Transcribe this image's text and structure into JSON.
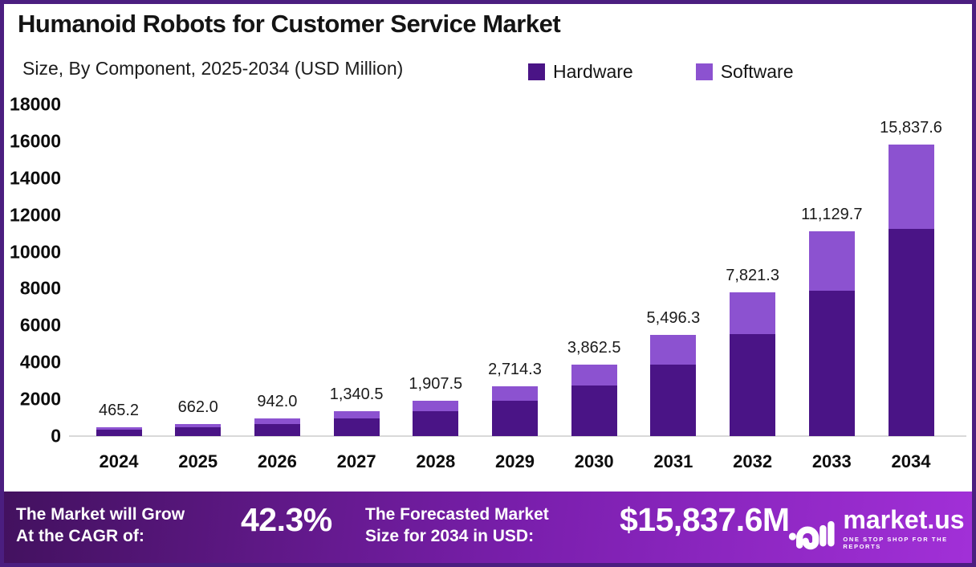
{
  "header": {
    "title": "Humanoid Robots for Customer Service Market",
    "subtitle": "Size, By Component, 2025-2034 (USD Million)"
  },
  "legend": [
    {
      "label": "Hardware",
      "color": "#4a1486"
    },
    {
      "label": "Software",
      "color": "#8c52d0"
    }
  ],
  "chart_data": {
    "type": "bar",
    "stacked": true,
    "title": "Humanoid Robots for Customer Service Market",
    "subtitle": "Size, By Component, 2025-2034 (USD Million)",
    "xlabel": "",
    "ylabel": "USD Million",
    "ylim": [
      0,
      18000
    ],
    "yticks": [
      0,
      2000,
      4000,
      6000,
      8000,
      10000,
      12000,
      14000,
      16000,
      18000
    ],
    "grid": false,
    "legend_position": "top",
    "categories": [
      "2024",
      "2025",
      "2026",
      "2027",
      "2028",
      "2029",
      "2030",
      "2031",
      "2032",
      "2033",
      "2034"
    ],
    "series": [
      {
        "name": "Hardware",
        "color": "#4a1486",
        "values": [
          330.0,
          469.5,
          668.0,
          950.5,
          1352.6,
          1924.7,
          2738.9,
          3897.9,
          5546.5,
          7892.9,
          11231.0
        ]
      },
      {
        "name": "Software",
        "color": "#8c52d0",
        "values": [
          135.2,
          192.5,
          274.0,
          390.0,
          554.9,
          789.6,
          1123.6,
          1598.4,
          2274.8,
          3236.8,
          4606.6
        ]
      }
    ],
    "totals": [
      465.2,
      662.0,
      942.0,
      1340.5,
      1907.5,
      2714.3,
      3862.5,
      5496.3,
      7821.3,
      11129.7,
      15837.6
    ],
    "total_labels": [
      "465.2",
      "662.0",
      "942.0",
      "1,340.5",
      "1,907.5",
      "2,714.3",
      "3,862.5",
      "5,496.3",
      "7,821.3",
      "11,129.7",
      "15,837.6"
    ]
  },
  "banner": {
    "cagr_label_line1": "The Market will Grow",
    "cagr_label_line2": "At the CAGR of:",
    "cagr_value": "42.3%",
    "forecast_label_line1": "The Forecasted Market",
    "forecast_label_line2": "Size for 2034 in USD:",
    "forecast_value": "$15,837.6M",
    "brand": "market.us",
    "brand_tagline": "ONE STOP SHOP FOR THE REPORTS"
  },
  "colors": {
    "hardware": "#4a1486",
    "software": "#8c52d0",
    "page_border": "#4b1e80",
    "axis_line": "#d9d9d9",
    "banner_left": "#42115e",
    "banner_mid": "#7b1fae",
    "banner_right": "#a230d8"
  }
}
